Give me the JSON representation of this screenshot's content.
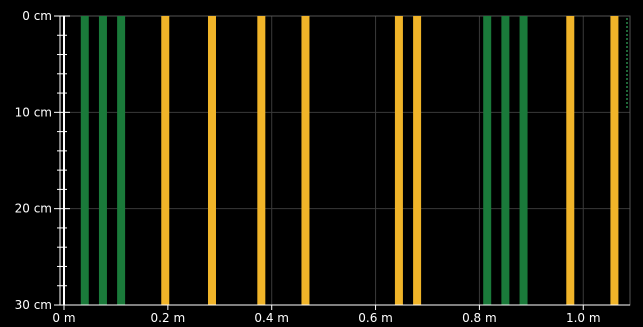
{
  "y_axis": {
    "ticks": [
      {
        "label": "0 cm",
        "value": 0
      },
      {
        "label": "10 cm",
        "value": 10
      },
      {
        "label": "20 cm",
        "value": 20
      },
      {
        "label": "30 cm",
        "value": 30
      }
    ],
    "range": [
      0,
      30
    ],
    "unit": "cm"
  },
  "x_axis": {
    "ticks": [
      {
        "label": "0 m",
        "value": 0.0
      },
      {
        "label": "0.2 m",
        "value": 0.2
      },
      {
        "label": "0.4 m",
        "value": 0.4
      },
      {
        "label": "0.6 m",
        "value": 0.6
      },
      {
        "label": "0.8 m",
        "value": 0.8
      },
      {
        "label": "1.0 m",
        "value": 1.0
      }
    ],
    "range": [
      0.0,
      1.09
    ],
    "unit": "m"
  },
  "stripes": [
    {
      "position_m": 0.04,
      "color": "#1a7a3a"
    },
    {
      "position_m": 0.075,
      "color": "#1a7a3a"
    },
    {
      "position_m": 0.11,
      "color": "#1a7a3a"
    },
    {
      "position_m": 0.195,
      "color": "#f0b429"
    },
    {
      "position_m": 0.285,
      "color": "#f0b429"
    },
    {
      "position_m": 0.38,
      "color": "#f0b429"
    },
    {
      "position_m": 0.465,
      "color": "#f0b429"
    },
    {
      "position_m": 0.645,
      "color": "#f0b429"
    },
    {
      "position_m": 0.68,
      "color": "#f0b429"
    },
    {
      "position_m": 0.815,
      "color": "#1a7a3a"
    },
    {
      "position_m": 0.85,
      "color": "#1a7a3a"
    },
    {
      "position_m": 0.885,
      "color": "#1a7a3a"
    },
    {
      "position_m": 0.975,
      "color": "#f0b429"
    },
    {
      "position_m": 1.06,
      "color": "#f0b429"
    }
  ],
  "colors": {
    "background": "#000000",
    "grid": "#3a3a3a",
    "axis": "#ffffff",
    "text": "#ffffff",
    "green_stripe": "#1a7a3a",
    "yellow_stripe": "#f0b429"
  }
}
